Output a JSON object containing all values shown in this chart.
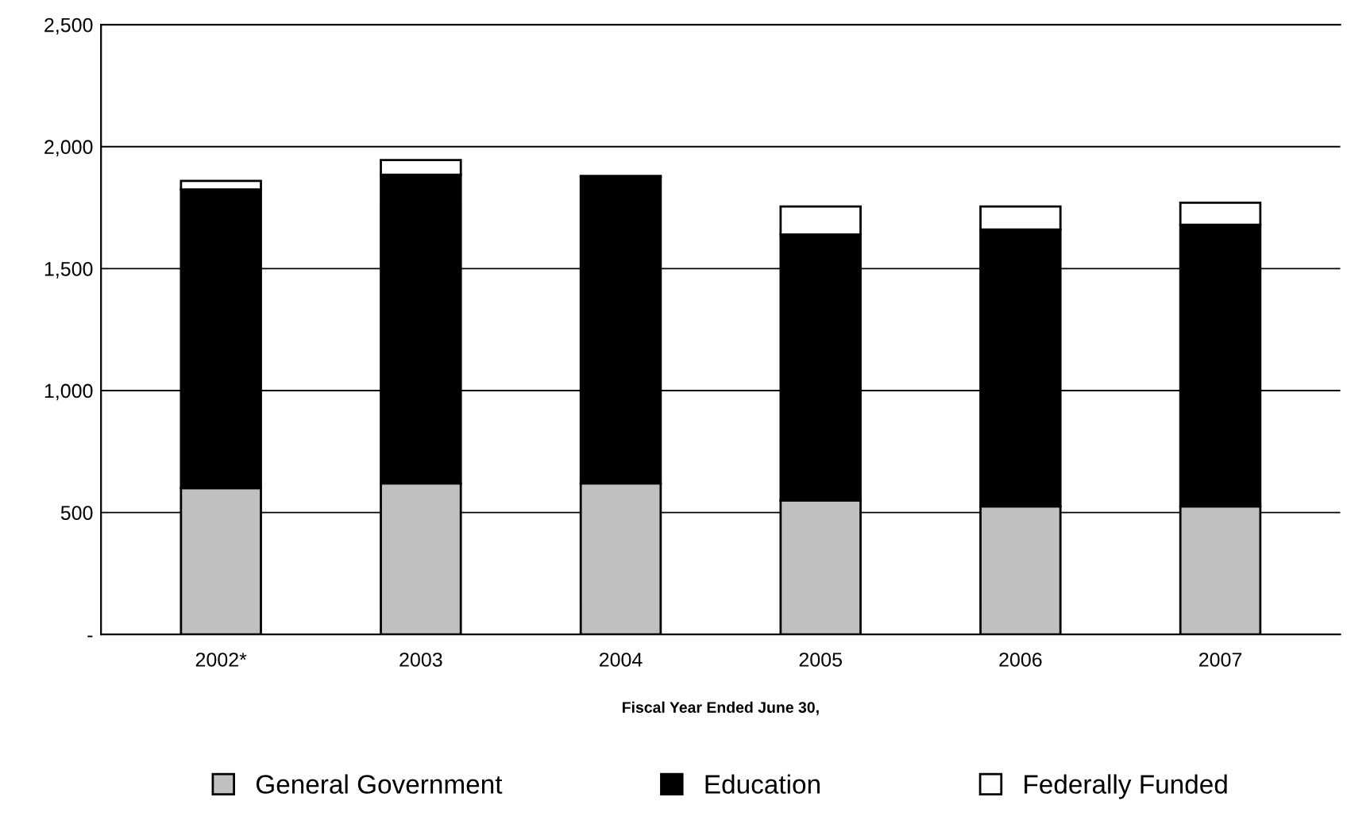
{
  "chart_data": {
    "type": "bar",
    "stacked": true,
    "xlabel": "Fiscal Year Ended June 30,",
    "categories": [
      "2002*",
      "2003",
      "2004",
      "2005",
      "2006",
      "2007"
    ],
    "series": [
      {
        "name": "General Government",
        "color": "#c0c0c0",
        "values": [
          600,
          620,
          620,
          550,
          525,
          525
        ]
      },
      {
        "name": "Education",
        "color": "#000000",
        "values": [
          1225,
          1265,
          1255,
          1090,
          1135,
          1155
        ]
      },
      {
        "name": "Federally Funded",
        "color": "#ffffff",
        "values": [
          35,
          60,
          5,
          115,
          95,
          90
        ]
      }
    ],
    "ylim": [
      0,
      2500
    ],
    "yticks": [
      {
        "value": 0,
        "label": "-"
      },
      {
        "value": 500,
        "label": "500"
      },
      {
        "value": 1000,
        "label": "1,000"
      },
      {
        "value": 1500,
        "label": "1,500"
      },
      {
        "value": 2000,
        "label": "2,000"
      },
      {
        "value": 2500,
        "label": "2,500"
      }
    ],
    "grid": "y",
    "legend": "bottom"
  }
}
